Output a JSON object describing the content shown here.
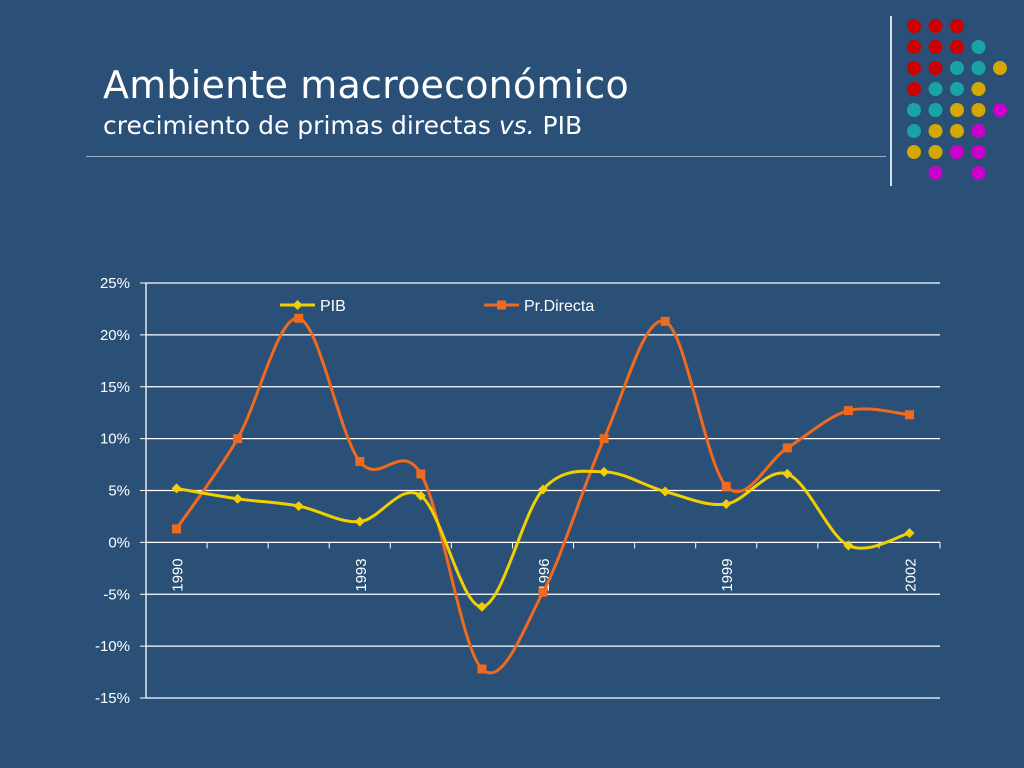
{
  "slide": {
    "title": "Ambiente macroeconómico",
    "subtitle_pre": "crecimiento de primas directas ",
    "subtitle_em": "vs.",
    "subtitle_post": " PIB"
  },
  "decoration": {
    "dot_grid": [
      [
        "#cc0000",
        "#cc0000",
        "#cc0000",
        null,
        null
      ],
      [
        "#cc0000",
        "#cc0000",
        "#cc0000",
        "#1aa3a3",
        null
      ],
      [
        "#cc0000",
        "#cc0000",
        "#1aa3a3",
        "#1aa3a3",
        "#d4a800"
      ],
      [
        "#cc0000",
        "#1aa3a3",
        "#1aa3a3",
        "#d4a800",
        null
      ],
      [
        "#1aa3a3",
        "#1aa3a3",
        "#d4a800",
        "#d4a800",
        "#cc00cc"
      ],
      [
        "#1aa3a3",
        "#d4a800",
        "#d4a800",
        "#cc00cc",
        null
      ],
      [
        "#d4a800",
        "#d4a800",
        "#cc00cc",
        "#cc00cc",
        null
      ],
      [
        null,
        "#cc00cc",
        null,
        "#cc00cc",
        null
      ]
    ]
  },
  "chart_data": {
    "type": "line",
    "title": "",
    "xlabel": "",
    "ylabel": "",
    "x": [
      1990,
      1991,
      1992,
      1993,
      1994,
      1995,
      1996,
      1997,
      1998,
      1999,
      2000,
      2001,
      2002
    ],
    "x_tick_labels": [
      "1990",
      "1993",
      "1996",
      "1999",
      "2002"
    ],
    "x_tick_label_years": [
      1990,
      1993,
      1996,
      1999,
      2002
    ],
    "ylim": [
      -15,
      25
    ],
    "yticks": [
      -15,
      -10,
      -5,
      0,
      5,
      10,
      15,
      20,
      25
    ],
    "ytick_labels": [
      "-15%",
      "-10%",
      "-5%",
      "0%",
      "5%",
      "10%",
      "15%",
      "20%",
      "25%"
    ],
    "grid": true,
    "smooth": true,
    "legend_position": "top",
    "series": [
      {
        "name": "PIB",
        "color": "#f0d000",
        "marker": "diamond",
        "values": [
          5.2,
          4.2,
          3.5,
          2.0,
          4.5,
          -6.2,
          5.1,
          6.8,
          4.9,
          3.7,
          6.6,
          -0.3,
          0.9
        ]
      },
      {
        "name": "Pr.Directa",
        "color": "#ef6a1e",
        "marker": "square",
        "values": [
          1.3,
          10.0,
          21.6,
          7.8,
          6.6,
          -12.2,
          -4.8,
          10.0,
          21.3,
          5.4,
          9.1,
          12.7,
          12.3
        ]
      }
    ]
  }
}
